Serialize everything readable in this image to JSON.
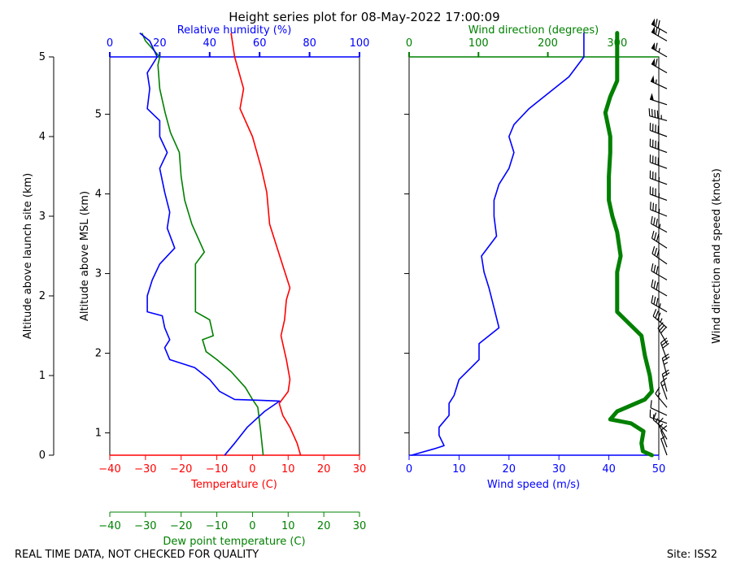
{
  "title": "Height series plot for 08-May-2022 17:00:09",
  "footer_left": "REAL TIME DATA, NOT CHECKED FOR QUALITY",
  "footer_right": "Site: ISS2",
  "colors": {
    "temperature": "#ff0000",
    "dewpoint": "#008000",
    "rh": "#0000ff",
    "wspd": "#0000ff",
    "wdir": "#008000",
    "barb": "#000000"
  },
  "chart_data": [
    {
      "type": "line",
      "panel": "thermo",
      "title": "Height series plot for 08-May-2022 17:00:09",
      "left_axis": {
        "label": "Altitude above launch site (km)",
        "range": [
          0,
          5
        ],
        "ticks": [
          0,
          1,
          2,
          3,
          4,
          5
        ]
      },
      "msl_axis": {
        "label": "Altitude above MSL (km)",
        "range": [
          0.72,
          5.72
        ],
        "ticks": [
          1,
          2,
          3,
          4,
          5
        ]
      },
      "x_axes": [
        {
          "key": "temp",
          "label": "Temperature (C)",
          "range": [
            -40,
            30
          ],
          "ticks": [
            -40,
            -30,
            -20,
            -10,
            0,
            10,
            20,
            30
          ]
        },
        {
          "key": "dew",
          "label": "Dew point temperature (C)",
          "range": [
            -40,
            30
          ],
          "ticks": [
            -40,
            -30,
            -20,
            -10,
            0,
            10,
            20,
            30
          ]
        },
        {
          "key": "rh",
          "label": "Relative humidity (%)",
          "range": [
            0,
            100
          ],
          "ticks": [
            0,
            20,
            40,
            60,
            80,
            100
          ]
        }
      ],
      "series": [
        {
          "name": "Temperature",
          "axis": "temp",
          "points": [
            [
              13.5,
              0.0
            ],
            [
              12.5,
              0.15
            ],
            [
              10.5,
              0.35
            ],
            [
              8.5,
              0.5
            ],
            [
              7.5,
              0.65
            ],
            [
              10,
              0.8
            ],
            [
              10.5,
              0.95
            ],
            [
              9.5,
              1.2
            ],
            [
              8,
              1.5
            ],
            [
              9,
              1.7
            ],
            [
              9.5,
              1.95
            ],
            [
              10.5,
              2.1
            ],
            [
              8,
              2.45
            ],
            [
              4.8,
              2.9
            ],
            [
              4,
              3.3
            ],
            [
              2.5,
              3.6
            ],
            [
              0,
              4.0
            ],
            [
              -3.5,
              4.35
            ],
            [
              -2.5,
              4.6
            ],
            [
              -5,
              5.0
            ],
            [
              -6,
              5.3
            ]
          ]
        },
        {
          "name": "Dew point",
          "axis": "dew",
          "points": [
            [
              3,
              0.0
            ],
            [
              2.3,
              0.3
            ],
            [
              1.5,
              0.6
            ],
            [
              0,
              0.7
            ],
            [
              -2,
              0.85
            ],
            [
              -6,
              1.05
            ],
            [
              -10,
              1.2
            ],
            [
              -13,
              1.3
            ],
            [
              -14,
              1.45
            ],
            [
              -11,
              1.5
            ],
            [
              -12,
              1.7
            ],
            [
              -16,
              1.8
            ],
            [
              -16,
              1.95
            ],
            [
              -16,
              2.1
            ],
            [
              -16,
              2.4
            ],
            [
              -13.5,
              2.55
            ],
            [
              -17,
              2.9
            ],
            [
              -19,
              3.2
            ],
            [
              -20,
              3.5
            ],
            [
              -20.5,
              3.8
            ],
            [
              -23,
              4.05
            ],
            [
              -24.5,
              4.3
            ],
            [
              -26,
              4.6
            ],
            [
              -26.5,
              4.9
            ],
            [
              -26,
              5.0
            ],
            [
              -30,
              5.2
            ],
            [
              -31,
              5.3
            ]
          ]
        },
        {
          "name": "Relative humidity",
          "axis": "rh",
          "points": [
            [
              46,
              0.0
            ],
            [
              50,
              0.15
            ],
            [
              55,
              0.35
            ],
            [
              62,
              0.55
            ],
            [
              68,
              0.68
            ],
            [
              60,
              0.69
            ],
            [
              50,
              0.7
            ],
            [
              44,
              0.8
            ],
            [
              40,
              0.95
            ],
            [
              34,
              1.1
            ],
            [
              24,
              1.2
            ],
            [
              22,
              1.35
            ],
            [
              24,
              1.45
            ],
            [
              22,
              1.6
            ],
            [
              21,
              1.75
            ],
            [
              15,
              1.8
            ],
            [
              15,
              2.0
            ],
            [
              17,
              2.2
            ],
            [
              20,
              2.4
            ],
            [
              26,
              2.6
            ],
            [
              23,
              2.85
            ],
            [
              24,
              3.05
            ],
            [
              22,
              3.3
            ],
            [
              20,
              3.6
            ],
            [
              23,
              3.8
            ],
            [
              20,
              4.0
            ],
            [
              20,
              4.2
            ],
            [
              15,
              4.35
            ],
            [
              16,
              4.6
            ],
            [
              15,
              4.8
            ],
            [
              19,
              5.0
            ],
            [
              16,
              5.2
            ],
            [
              12,
              5.3
            ]
          ]
        }
      ]
    },
    {
      "type": "line",
      "panel": "wind",
      "x_axes": [
        {
          "key": "wspd",
          "label": "Wind speed (m/s)",
          "range": [
            0,
            50
          ],
          "ticks": [
            0,
            10,
            20,
            30,
            40,
            50
          ]
        },
        {
          "key": "wdir",
          "label": "Wind direction (degrees)",
          "range": [
            0,
            360
          ],
          "ticks": [
            0,
            100,
            200,
            300
          ]
        }
      ],
      "right_label": "Wind direction and speed (knots)",
      "series": [
        {
          "name": "Wind speed",
          "axis": "wspd",
          "points": [
            [
              0.5,
              0.0
            ],
            [
              5,
              0.08
            ],
            [
              7,
              0.12
            ],
            [
              6,
              0.25
            ],
            [
              6,
              0.35
            ],
            [
              8,
              0.5
            ],
            [
              8,
              0.65
            ],
            [
              9,
              0.75
            ],
            [
              10,
              0.95
            ],
            [
              14,
              1.2
            ],
            [
              14,
              1.4
            ],
            [
              18,
              1.6
            ],
            [
              17,
              1.85
            ],
            [
              16,
              2.1
            ],
            [
              15,
              2.3
            ],
            [
              14.5,
              2.5
            ],
            [
              17.5,
              2.75
            ],
            [
              17,
              3.0
            ],
            [
              17,
              3.2
            ],
            [
              18,
              3.4
            ],
            [
              20,
              3.6
            ],
            [
              21,
              3.8
            ],
            [
              20,
              4.0
            ],
            [
              21,
              4.15
            ],
            [
              24,
              4.35
            ],
            [
              28,
              4.55
            ],
            [
              32,
              4.75
            ],
            [
              35,
              5.0
            ],
            [
              35,
              5.3
            ]
          ]
        },
        {
          "name": "Wind direction",
          "axis": "wdir",
          "points": [
            [
              350,
              0.0
            ],
            [
              337,
              0.05
            ],
            [
              335,
              0.15
            ],
            [
              338,
              0.3
            ],
            [
              320,
              0.4
            ],
            [
              290,
              0.45
            ],
            [
              300,
              0.55
            ],
            [
              340,
              0.7
            ],
            [
              350,
              0.8
            ],
            [
              347,
              1.0
            ],
            [
              340,
              1.25
            ],
            [
              335,
              1.5
            ],
            [
              300,
              1.8
            ],
            [
              300,
              2.05
            ],
            [
              300,
              2.3
            ],
            [
              305,
              2.5
            ],
            [
              300,
              2.8
            ],
            [
              293,
              3.0
            ],
            [
              288,
              3.2
            ],
            [
              288,
              3.5
            ],
            [
              290,
              3.8
            ],
            [
              290,
              4.0
            ],
            [
              283,
              4.3
            ],
            [
              290,
              4.5
            ],
            [
              300,
              4.7
            ],
            [
              300,
              4.9
            ],
            [
              300,
              5.1
            ],
            [
              300,
              5.3
            ]
          ]
        }
      ],
      "barbs": [
        [
          0.0,
          340,
          5
        ],
        [
          0.1,
          340,
          12
        ],
        [
          0.2,
          330,
          14
        ],
        [
          0.3,
          310,
          14
        ],
        [
          0.4,
          290,
          14
        ],
        [
          0.5,
          295,
          12
        ],
        [
          0.6,
          320,
          14
        ],
        [
          0.7,
          340,
          16
        ],
        [
          0.8,
          345,
          18
        ],
        [
          1.0,
          345,
          26
        ],
        [
          1.2,
          340,
          30
        ],
        [
          1.4,
          330,
          32
        ],
        [
          1.6,
          310,
          34
        ],
        [
          1.8,
          300,
          34
        ],
        [
          2.0,
          300,
          32
        ],
        [
          2.2,
          300,
          30
        ],
        [
          2.4,
          305,
          30
        ],
        [
          2.6,
          303,
          32
        ],
        [
          2.8,
          298,
          34
        ],
        [
          3.0,
          292,
          34
        ],
        [
          3.2,
          290,
          34
        ],
        [
          3.4,
          290,
          36
        ],
        [
          3.6,
          290,
          38
        ],
        [
          3.8,
          290,
          40
        ],
        [
          4.0,
          290,
          40
        ],
        [
          4.2,
          285,
          44
        ],
        [
          4.4,
          288,
          50
        ],
        [
          4.6,
          295,
          56
        ],
        [
          4.8,
          300,
          62
        ],
        [
          5.0,
          300,
          66
        ],
        [
          5.2,
          300,
          68
        ],
        [
          5.3,
          300,
          68
        ]
      ]
    }
  ]
}
